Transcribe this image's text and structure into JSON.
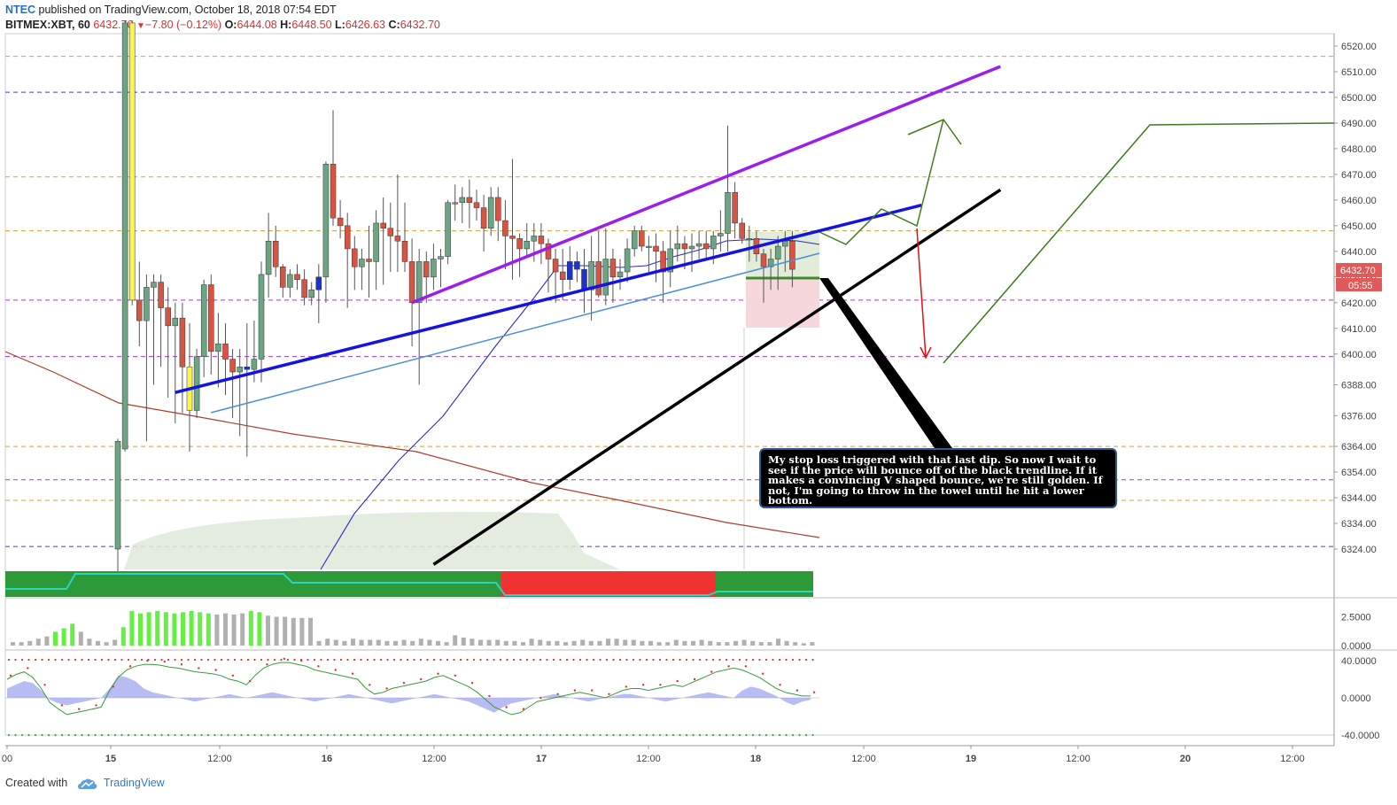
{
  "header": {
    "publisher": "NTEC",
    "published_text": "published on TradingView.com, October 18, 2018 07:54 EDT",
    "symbol": "BITMEX:XBT, 60",
    "last_price": "6432.70",
    "change": "−7.80 (−0.12%)",
    "o_label": "O:",
    "o_value": "6444.08",
    "h_label": "H:",
    "h_value": "6448.50",
    "l_label": "L:",
    "l_value": "6426.63",
    "c_label": "C:",
    "c_value": "6432.70"
  },
  "footer": {
    "created_with": "Created with",
    "brand": "TradingView"
  },
  "annotation": {
    "text": "My stop loss triggered with that last dip.  So now I wait to see if the price will bounce off of the black trendline.  If it makes a convincing V shaped bounce, we're still golden.  If not, I'm going to throw in the towel until he hit a lower bottom."
  },
  "colors": {
    "up": "#6ba583",
    "down": "#d75442",
    "yellow_bar": "#fbf34e",
    "blue_bar": "#1a33d8",
    "trend_purple": "#9b1fe8",
    "trend_blue": "#1414e0",
    "trend_black": "#000000",
    "projection_green": "#3f7a1d",
    "projection_red": "#e01010",
    "price_badge": "#e05a5a"
  },
  "chart_data": [
    {
      "type": "candlestick",
      "title": "",
      "symbol": "BITMEX:XBT",
      "interval": "60",
      "x_ticks": [
        "00",
        "15",
        "12:00",
        "16",
        "12:00",
        "17",
        "12:00",
        "18",
        "12:00",
        "19",
        "12:00",
        "20",
        "12:00"
      ],
      "y_ticks": [
        6520,
        6510,
        6500,
        6490,
        6480,
        6470,
        6460,
        6450,
        6440,
        6430,
        6420,
        6410,
        6400,
        6388,
        6376,
        6364,
        6354,
        6344,
        6334,
        6324
      ],
      "y_tick_labels": [
        "6520.00",
        "6510.00",
        "6500.00",
        "6490.00",
        "6480.00",
        "6470.00",
        "6460.00",
        "6450.00",
        "6440.00",
        "6430.00",
        "6420.00",
        "6410.00",
        "6400.00",
        "6388.00",
        "6376.00",
        "6364.00",
        "6354.00",
        "6344.00",
        "6334.00",
        "6324.00"
      ],
      "last_price_label": "6432.70",
      "countdown_label": "05:55",
      "candles": [
        [
          6324,
          6367,
          6315,
          6366
        ],
        [
          6363,
          6530,
          6362,
          6529
        ],
        [
          6529,
          6530,
          6419,
          6421
        ],
        [
          6421,
          6436,
          6403,
          6413
        ],
        [
          6413,
          6431,
          6366,
          6426
        ],
        [
          6426,
          6431,
          6388,
          6428
        ],
        [
          6428,
          6431,
          6395,
          6418
        ],
        [
          6418,
          6426,
          6383,
          6411
        ],
        [
          6411,
          6420,
          6373,
          6414
        ],
        [
          6414,
          6420,
          6377,
          6395
        ],
        [
          6395,
          6412,
          6362,
          6378
        ],
        [
          6378,
          6402,
          6375,
          6399
        ],
        [
          6399,
          6429,
          6391,
          6427
        ],
        [
          6427,
          6431,
          6392,
          6401
        ],
        [
          6401,
          6416,
          6387,
          6404
        ],
        [
          6404,
          6412,
          6384,
          6398
        ],
        [
          6398,
          6402,
          6375,
          6393
        ],
        [
          6393,
          6402,
          6368,
          6395
        ],
        [
          6395,
          6412,
          6360,
          6394
        ],
        [
          6394,
          6413,
          6389,
          6398
        ],
        [
          6398,
          6436,
          6389,
          6431
        ],
        [
          6431,
          6455,
          6422,
          6444
        ],
        [
          6444,
          6450,
          6430,
          6434
        ],
        [
          6434,
          6435,
          6422,
          6426
        ],
        [
          6426,
          6433,
          6422,
          6431
        ],
        [
          6431,
          6435,
          6425,
          6429
        ],
        [
          6429,
          6433,
          6419,
          6422
        ],
        [
          6422,
          6428,
          6419,
          6425
        ],
        [
          6425,
          6435,
          6412,
          6430
        ],
        [
          6430,
          6475,
          6420,
          6474
        ],
        [
          6474,
          6495,
          6450,
          6453
        ],
        [
          6453,
          6460,
          6445,
          6450
        ],
        [
          6450,
          6455,
          6418,
          6441
        ],
        [
          6441,
          6446,
          6425,
          6434
        ],
        [
          6434,
          6441,
          6425,
          6437
        ],
        [
          6437,
          6450,
          6422,
          6436
        ],
        [
          6436,
          6456,
          6425,
          6451
        ],
        [
          6451,
          6461,
          6427,
          6449
        ],
        [
          6449,
          6459,
          6432,
          6446
        ],
        [
          6446,
          6470,
          6432,
          6444
        ],
        [
          6444,
          6459,
          6432,
          6436
        ],
        [
          6436,
          6445,
          6403,
          6420
        ],
        [
          6420,
          6441,
          6388,
          6436
        ],
        [
          6436,
          6440,
          6420,
          6430
        ],
        [
          6430,
          6443,
          6425,
          6437
        ],
        [
          6437,
          6441,
          6426,
          6438
        ],
        [
          6438,
          6460,
          6435,
          6459
        ],
        [
          6459,
          6466,
          6452,
          6459
        ],
        [
          6459,
          6465,
          6451,
          6461
        ],
        [
          6461,
          6468,
          6449,
          6459
        ],
        [
          6459,
          6464,
          6452,
          6457
        ],
        [
          6457,
          6462,
          6440,
          6449
        ],
        [
          6449,
          6465,
          6446,
          6461
        ],
        [
          6461,
          6465,
          6444,
          6452
        ],
        [
          6452,
          6460,
          6433,
          6446
        ],
        [
          6446,
          6476,
          6429,
          6445
        ],
        [
          6445,
          6447,
          6430,
          6441
        ],
        [
          6441,
          6451,
          6438,
          6444
        ],
        [
          6444,
          6451,
          6436,
          6446
        ],
        [
          6446,
          6451,
          6435,
          6443
        ],
        [
          6443,
          6445,
          6424,
          6437
        ],
        [
          6437,
          6441,
          6420,
          6432
        ],
        [
          6432,
          6441,
          6421,
          6429
        ],
        [
          6429,
          6442,
          6425,
          6436
        ],
        [
          6436,
          6440,
          6428,
          6433
        ],
        [
          6433,
          6441,
          6416,
          6425
        ],
        [
          6425,
          6446,
          6413,
          6436
        ],
        [
          6436,
          6448,
          6422,
          6423
        ],
        [
          6423,
          6449,
          6419,
          6437
        ],
        [
          6437,
          6441,
          6420,
          6430
        ],
        [
          6430,
          6437,
          6425,
          6432
        ],
        [
          6432,
          6445,
          6428,
          6441
        ],
        [
          6441,
          6450,
          6438,
          6448
        ],
        [
          6448,
          6450,
          6440,
          6442
        ],
        [
          6442,
          6446,
          6432,
          6442
        ],
        [
          6442,
          6447,
          6428,
          6440
        ],
        [
          6440,
          6444,
          6420,
          6432
        ],
        [
          6432,
          6448,
          6426,
          6441
        ],
        [
          6441,
          6450,
          6436,
          6443
        ],
        [
          6443,
          6446,
          6433,
          6441
        ],
        [
          6441,
          6447,
          6432,
          6442
        ],
        [
          6442,
          6448,
          6437,
          6443
        ],
        [
          6443,
          6448,
          6437,
          6441
        ],
        [
          6441,
          6448,
          6435,
          6446
        ],
        [
          6446,
          6456,
          6440,
          6447
        ],
        [
          6447,
          6489,
          6440,
          6463
        ],
        [
          6463,
          6467,
          6445,
          6451
        ],
        [
          6451,
          6453,
          6443,
          6445
        ],
        [
          6445,
          6450,
          6436,
          6445
        ],
        [
          6445,
          6448,
          6436,
          6439
        ],
        [
          6439,
          6441,
          6420,
          6434
        ],
        [
          6434,
          6441,
          6425,
          6437
        ],
        [
          6437,
          6446,
          6425,
          6442
        ],
        [
          6442,
          6448,
          6432,
          6444
        ],
        [
          6444,
          6448,
          6426,
          6433
        ]
      ],
      "trendlines": [
        {
          "name": "purple",
          "from": [
            41,
            6420
          ],
          "to": [
            123,
            6512
          ]
        },
        {
          "name": "blue",
          "from": [
            8,
            6385
          ],
          "to": [
            112,
            6458
          ]
        },
        {
          "name": "black",
          "from": [
            44,
            6318
          ],
          "to": [
            123,
            6464
          ]
        }
      ],
      "horizontal_levels": [
        {
          "value": 6516,
          "color": "orange"
        },
        {
          "value": 6502,
          "color": "blue"
        },
        {
          "value": 6469,
          "color": "orange"
        },
        {
          "value": 6448,
          "color": "orange"
        },
        {
          "value": 6421,
          "color": "purple"
        },
        {
          "value": 6399,
          "color": "purple"
        },
        {
          "value": 6364,
          "color": "orange"
        },
        {
          "value": 6351,
          "color": "purple"
        },
        {
          "value": 6343,
          "color": "orange"
        },
        {
          "value": 6325,
          "color": "blue"
        }
      ]
    },
    {
      "type": "histogram",
      "title": "",
      "y_ticks": [
        2.5,
        0
      ],
      "y_tick_labels": [
        "2.5000",
        "0.0000"
      ],
      "values": [
        0.3,
        0.3,
        0.4,
        0.6,
        0.8,
        1.2,
        1.5,
        1.9,
        1.2,
        0.6,
        0.4,
        0.3,
        0.5,
        1.6,
        3.0,
        2.8,
        2.9,
        3.0,
        2.9,
        2.8,
        2.9,
        3.0,
        2.9,
        2.8,
        2.7,
        2.8,
        2.7,
        2.8,
        3.0,
        2.9,
        2.6,
        2.5,
        2.5,
        2.4,
        2.4,
        2.4,
        0.4,
        0.6,
        0.5,
        0.4,
        0.6,
        0.5,
        0.5,
        0.5,
        0.4,
        0.4,
        0.5,
        0.4,
        0.6,
        0.5,
        0.4,
        0.3,
        0.9,
        0.7,
        0.6,
        0.5,
        0.5,
        0.5,
        0.4,
        0.4,
        0.3,
        0.6,
        0.5,
        0.4,
        0.4,
        0.3,
        0.4,
        0.5,
        0.4,
        0.4,
        0.6,
        0.6,
        0.5,
        0.5,
        0.4,
        0.4,
        0.3,
        0.3,
        0.5,
        0.4,
        0.4,
        0.5,
        0.4,
        0.3,
        0.3,
        0.4,
        0.5,
        0.4,
        0.3,
        0.3,
        0.6,
        0.4,
        0.3,
        0.2,
        0.3
      ],
      "colors": [
        "gray",
        "gray",
        "gray",
        "gray",
        "gray",
        "lime",
        "lime",
        "lime",
        "gray",
        "gray",
        "gray",
        "gray",
        "gray",
        "lime",
        "lime",
        "lime",
        "lime",
        "lime",
        "lime",
        "lime",
        "lime",
        "lime",
        "lime",
        "lime",
        "gray",
        "gray",
        "gray",
        "gray",
        "lime",
        "lime",
        "gray",
        "gray",
        "gray",
        "gray",
        "gray",
        "gray"
      ]
    },
    {
      "type": "line",
      "title": "",
      "y_ticks": [
        40,
        0,
        -40
      ],
      "y_tick_labels": [
        "40.0000",
        "0.0000",
        "-40.0000"
      ],
      "series": [
        {
          "values": [
            20,
            25,
            28,
            22,
            10,
            -5,
            -12,
            -18,
            -16,
            -14,
            -12,
            -10,
            8,
            22,
            30,
            34,
            36,
            36,
            35,
            33,
            32,
            30,
            28,
            27,
            26,
            24,
            20,
            18,
            14,
            24,
            32,
            36,
            38,
            38,
            36,
            34,
            30,
            28,
            26,
            24,
            22,
            20,
            10,
            4,
            6,
            10,
            12,
            14,
            16,
            18,
            22,
            24,
            20,
            16,
            12,
            6,
            -2,
            -10,
            -14,
            -18,
            -16,
            -10,
            -4,
            -2,
            0,
            2,
            4,
            6,
            4,
            2,
            0,
            4,
            8,
            10,
            10,
            8,
            10,
            12,
            14,
            12,
            16,
            20,
            24,
            28,
            30,
            32,
            30,
            26,
            22,
            16,
            10,
            6,
            4,
            2,
            2
          ]
        },
        {
          "values": [
            10,
            14,
            18,
            16,
            8,
            -2,
            -6,
            -8,
            -6,
            -4,
            -2,
            0,
            10,
            24,
            22,
            18,
            10,
            6,
            4,
            2,
            0,
            -2,
            -4,
            -2,
            0,
            2,
            4,
            2,
            0,
            2,
            4,
            6,
            4,
            2,
            0,
            -2,
            -4,
            -2,
            0,
            2,
            4,
            2,
            0,
            -2,
            -4,
            -6,
            -4,
            -2,
            0,
            2,
            4,
            2,
            0,
            -2,
            -4,
            -8,
            -12,
            -16,
            -10,
            -6,
            -4,
            -2,
            0,
            2,
            4,
            2,
            0,
            -2,
            -4,
            -2,
            0,
            2,
            4,
            4,
            2,
            0,
            -2,
            -4,
            -2,
            0,
            2,
            4,
            6,
            4,
            2,
            0,
            8,
            12,
            10,
            6,
            2,
            -4,
            -8,
            -4,
            -2
          ]
        }
      ]
    }
  ]
}
